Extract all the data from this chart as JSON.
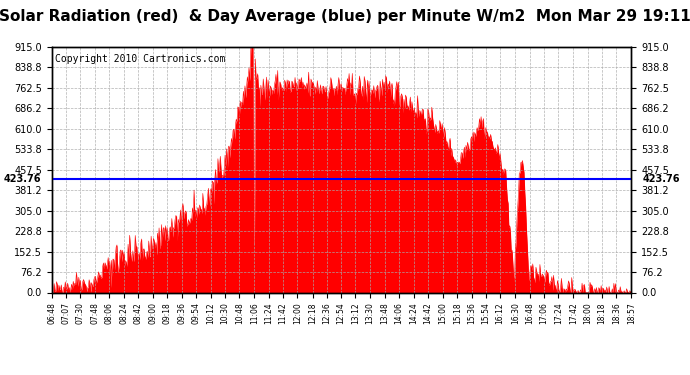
{
  "title": "Solar Radiation (red)  & Day Average (blue) per Minute W/m2  Mon Mar 29 19:11",
  "copyright": "Copyright 2010 Cartronics.com",
  "avg_value": 423.76,
  "y_max": 915.0,
  "y_min": 0.0,
  "y_ticks": [
    0.0,
    76.2,
    152.5,
    228.8,
    305.0,
    381.2,
    457.5,
    533.8,
    610.0,
    686.2,
    762.5,
    838.8,
    915.0
  ],
  "x_labels": [
    "06:48",
    "07:07",
    "07:30",
    "07:48",
    "08:06",
    "08:24",
    "08:42",
    "09:00",
    "09:18",
    "09:36",
    "09:54",
    "10:12",
    "10:30",
    "10:48",
    "11:06",
    "11:24",
    "11:42",
    "12:00",
    "12:18",
    "12:36",
    "12:54",
    "13:12",
    "13:30",
    "13:48",
    "14:06",
    "14:24",
    "14:42",
    "15:00",
    "15:18",
    "15:36",
    "15:54",
    "16:12",
    "16:30",
    "16:48",
    "17:06",
    "17:24",
    "17:42",
    "18:00",
    "18:18",
    "18:36",
    "18:57"
  ],
  "fill_color": "#FF0000",
  "line_color": "#FF0000",
  "avg_line_color": "#0000FF",
  "bg_color": "#FFFFFF",
  "grid_color": "#AAAAAA",
  "title_fontsize": 11,
  "copyright_fontsize": 7,
  "left_label": "423.76",
  "right_label": "423.76"
}
